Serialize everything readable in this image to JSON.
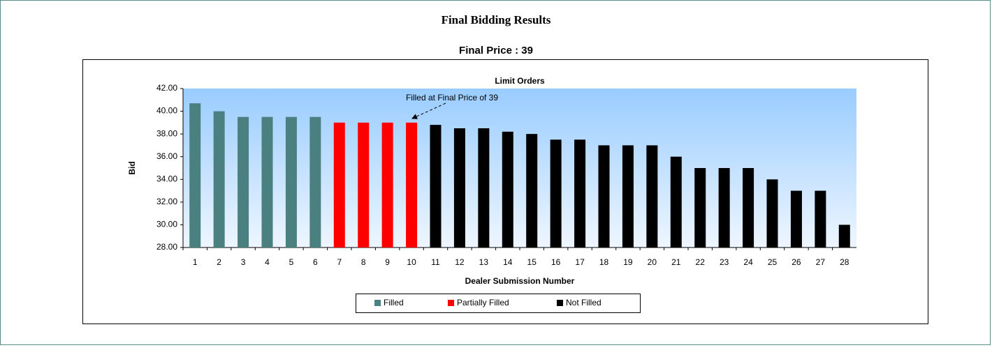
{
  "header": {
    "title": "Final Bidding Results",
    "subtitle": "Final Price : 39"
  },
  "chart_data": {
    "type": "bar",
    "title": "Limit Orders",
    "x_label": "Dealer Submission Number",
    "y_label": "Bid",
    "annotation": "Filled at Final Price of 39",
    "categories": [
      "1",
      "2",
      "3",
      "4",
      "5",
      "6",
      "7",
      "8",
      "9",
      "10",
      "11",
      "12",
      "13",
      "14",
      "15",
      "16",
      "17",
      "18",
      "19",
      "20",
      "21",
      "22",
      "23",
      "24",
      "25",
      "26",
      "27",
      "28"
    ],
    "series": [
      {
        "name": "Filled",
        "color": "#4a8080",
        "values": [
          40.7,
          40,
          39.5,
          39.5,
          39.5,
          39.5,
          null,
          null,
          null,
          null,
          null,
          null,
          null,
          null,
          null,
          null,
          null,
          null,
          null,
          null,
          null,
          null,
          null,
          null,
          null,
          null,
          null,
          null
        ]
      },
      {
        "name": "Partially Filled",
        "color": "#ff0000",
        "values": [
          null,
          null,
          null,
          null,
          null,
          null,
          39,
          39,
          39,
          39,
          null,
          null,
          null,
          null,
          null,
          null,
          null,
          null,
          null,
          null,
          null,
          null,
          null,
          null,
          null,
          null,
          null,
          null
        ]
      },
      {
        "name": "Not Filled",
        "color": "#000000",
        "values": [
          null,
          null,
          null,
          null,
          null,
          null,
          null,
          null,
          null,
          null,
          38.8,
          38.5,
          38.5,
          38.2,
          38,
          37.5,
          37.5,
          37,
          37,
          37,
          36,
          35,
          35,
          35,
          34,
          33,
          33,
          30
        ]
      }
    ],
    "ylim": [
      28,
      42
    ],
    "yticks": [
      {
        "value": 28,
        "label": "28.00"
      },
      {
        "value": 30,
        "label": "30.00"
      },
      {
        "value": 32,
        "label": "32.00"
      },
      {
        "value": 34,
        "label": "34.00"
      },
      {
        "value": 36,
        "label": "36.00"
      },
      {
        "value": 38,
        "label": "38.00"
      },
      {
        "value": 40,
        "label": "40.00"
      },
      {
        "value": 42,
        "label": "42.00"
      }
    ],
    "legend": "bottom"
  }
}
